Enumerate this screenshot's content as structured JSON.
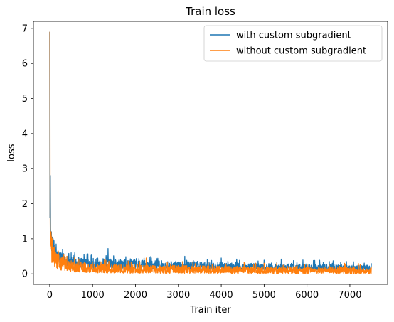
{
  "chart_data": {
    "type": "line",
    "title": "Train loss",
    "xlabel": "Train iter",
    "ylabel": "loss",
    "xlim": [
      -380,
      7880
    ],
    "ylim": [
      -0.3,
      7.2
    ],
    "xticks": [
      0,
      1000,
      2000,
      3000,
      4000,
      5000,
      6000,
      7000
    ],
    "yticks": [
      0,
      1,
      2,
      3,
      4,
      5,
      6,
      7
    ],
    "xtick_labels": [
      "0",
      "1000",
      "2000",
      "3000",
      "4000",
      "5000",
      "6000",
      "7000"
    ],
    "ytick_labels": [
      "0",
      "1",
      "2",
      "3",
      "4",
      "5",
      "6",
      "7"
    ],
    "grid": false,
    "legend_position": "top-right",
    "x_max": 7500,
    "series": [
      {
        "name": "with custom subgradient",
        "color": "#1f77b4",
        "spikes": [
          [
            0,
            6.9
          ],
          [
            5,
            1.6
          ],
          [
            10,
            1.8
          ],
          [
            20,
            1.3
          ],
          [
            40,
            1.2
          ],
          [
            80,
            1.0
          ],
          [
            150,
            0.85
          ],
          [
            300,
            0.7
          ],
          [
            500,
            0.6
          ],
          [
            800,
            0.55
          ],
          [
            1360,
            0.72
          ],
          [
            2200,
            0.45
          ],
          [
            3150,
            0.5
          ],
          [
            4000,
            0.45
          ],
          [
            5400,
            0.42
          ],
          [
            7500,
            0.3
          ]
        ],
        "envelope": [
          [
            0,
            6.9
          ],
          [
            20,
            1.35
          ],
          [
            50,
            1.1
          ],
          [
            100,
            0.85
          ],
          [
            200,
            0.7
          ],
          [
            400,
            0.55
          ],
          [
            700,
            0.5
          ],
          [
            1000,
            0.46
          ],
          [
            1500,
            0.42
          ],
          [
            2000,
            0.4
          ],
          [
            3000,
            0.36
          ],
          [
            4000,
            0.32
          ],
          [
            5000,
            0.3
          ],
          [
            6000,
            0.28
          ],
          [
            7500,
            0.25
          ]
        ],
        "baseline": [
          [
            0,
            6.9
          ],
          [
            20,
            0.9
          ],
          [
            50,
            0.6
          ],
          [
            100,
            0.4
          ],
          [
            200,
            0.3
          ],
          [
            500,
            0.2
          ],
          [
            1000,
            0.16
          ],
          [
            2000,
            0.14
          ],
          [
            3000,
            0.13
          ],
          [
            5000,
            0.12
          ],
          [
            7500,
            0.1
          ]
        ]
      },
      {
        "name": "without custom subgradient",
        "color": "#ff7f0e",
        "spikes": [
          [
            0,
            6.9
          ],
          [
            5,
            6.9
          ],
          [
            10,
            1.7
          ],
          [
            30,
            1.2
          ],
          [
            60,
            1.0
          ],
          [
            120,
            0.8
          ],
          [
            200,
            0.65
          ],
          [
            400,
            0.5
          ],
          [
            700,
            0.4
          ],
          [
            2250,
            0.45
          ],
          [
            3100,
            0.35
          ],
          [
            5000,
            0.3
          ],
          [
            7500,
            0.2
          ]
        ],
        "envelope": [
          [
            0,
            6.9
          ],
          [
            10,
            1.7
          ],
          [
            40,
            1.1
          ],
          [
            100,
            0.75
          ],
          [
            200,
            0.55
          ],
          [
            400,
            0.42
          ],
          [
            700,
            0.35
          ],
          [
            1000,
            0.3
          ],
          [
            2000,
            0.26
          ],
          [
            3000,
            0.24
          ],
          [
            5000,
            0.2
          ],
          [
            7500,
            0.18
          ]
        ],
        "baseline": [
          [
            0,
            6.9
          ],
          [
            10,
            0.6
          ],
          [
            40,
            0.3
          ],
          [
            100,
            0.2
          ],
          [
            200,
            0.12
          ],
          [
            500,
            0.06
          ],
          [
            1000,
            0.03
          ],
          [
            2000,
            0.02
          ],
          [
            5000,
            0.01
          ],
          [
            7500,
            0.01
          ]
        ]
      }
    ]
  }
}
